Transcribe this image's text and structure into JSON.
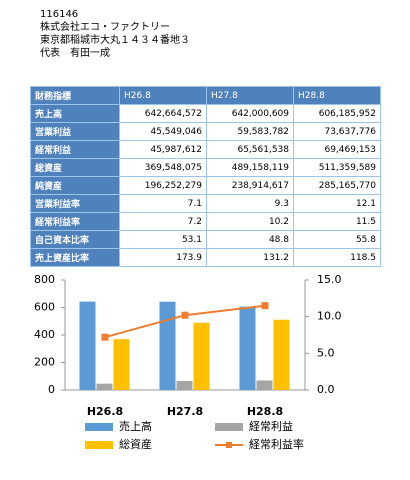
{
  "header": {
    "code": "116146",
    "company": "株式会社エコ・ファクトリー",
    "address": "東京都稲城市大丸１４３４番地３",
    "representative": "代表　有田一成"
  },
  "table": {
    "columns": [
      "財務指標",
      "H26.8",
      "H27.8",
      "H28.8"
    ],
    "rows": [
      [
        "売上高",
        "642,664,572",
        "642,000,609",
        "606,185,952"
      ],
      [
        "営業利益",
        "45,549,046",
        "59,583,782",
        "73,637,776"
      ],
      [
        "経常利益",
        "45,987,612",
        "65,561,538",
        "69,469,153"
      ],
      [
        "総資産",
        "369,548,075",
        "489,158,119",
        "511,359,589"
      ],
      [
        "純資産",
        "196,252,279",
        "238,914,617",
        "285,165,770"
      ],
      [
        "営業利益率",
        "7.1",
        "9.3",
        "12.1"
      ],
      [
        "経常利益率",
        "7.2",
        "10.2",
        "11.5"
      ],
      [
        "自己資本比率",
        "53.1",
        "48.8",
        "55.8"
      ],
      [
        "売上資産比率",
        "173.9",
        "131.2",
        "118.5"
      ]
    ]
  },
  "chart_data": {
    "type": "bar-line",
    "categories": [
      "H26.8",
      "H27.8",
      "H28.8"
    ],
    "ylim": [
      0,
      800
    ],
    "yticks": [
      0,
      200,
      400,
      600,
      800
    ],
    "y2lim": [
      0,
      15
    ],
    "y2ticks": [
      {
        "value": 0,
        "label": "0.0"
      },
      {
        "value": 5,
        "label": "5.0"
      },
      {
        "value": 10,
        "label": "10.0"
      },
      {
        "value": 15,
        "label": "15.0"
      }
    ],
    "series": [
      {
        "name": "売上高",
        "color": "#5b9bd5",
        "kind": "bar",
        "values": [
          643,
          642,
          606
        ]
      },
      {
        "name": "経常利益",
        "color": "#a5a5a5",
        "kind": "bar",
        "values": [
          46,
          66,
          69
        ]
      },
      {
        "name": "総資産",
        "color": "#ffc000",
        "kind": "bar",
        "values": [
          370,
          489,
          511
        ]
      },
      {
        "name": "経常利益率",
        "color": "#ed7d31",
        "kind": "line",
        "axis": "y2",
        "values": [
          7.2,
          10.2,
          11.5
        ]
      }
    ]
  }
}
